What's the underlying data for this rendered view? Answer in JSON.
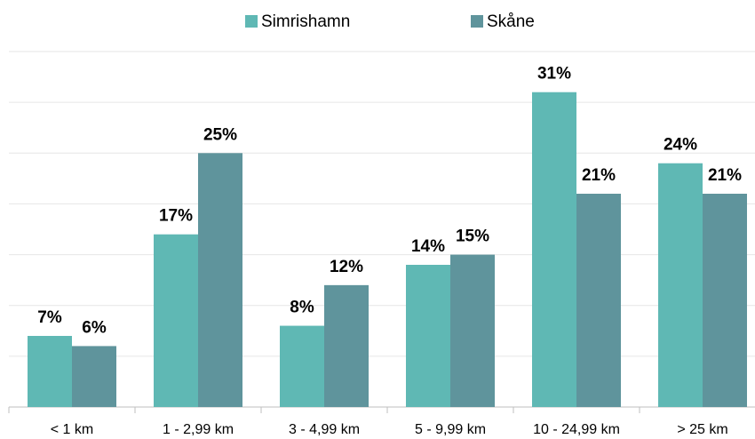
{
  "chart_data": {
    "type": "bar",
    "categories": [
      "< 1 km",
      "1 - 2,99 km",
      "3 - 4,99 km",
      "5 - 9,99 km",
      "10 - 24,99 km",
      "> 25 km"
    ],
    "series": [
      {
        "name": "Simrishamn",
        "color": "#5fb8b4",
        "values": [
          7,
          17,
          8,
          14,
          31,
          24
        ],
        "value_labels": [
          "7%",
          "17%",
          "8%",
          "14%",
          "31%",
          "24%"
        ]
      },
      {
        "name": "Skåne",
        "color": "#5f949c",
        "values": [
          6,
          25,
          12,
          15,
          21,
          21
        ],
        "value_labels": [
          "6%",
          "25%",
          "12%",
          "15%",
          "21%",
          "21%"
        ]
      }
    ],
    "ylim": [
      0,
      35
    ],
    "yticks": [
      0,
      5,
      10,
      15,
      20,
      25,
      30,
      35
    ],
    "grid": true,
    "legend": "top"
  }
}
